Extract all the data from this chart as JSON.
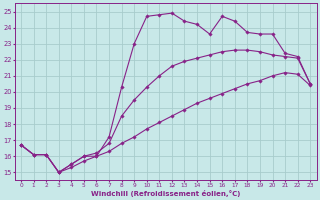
{
  "background_color": "#c8e8e8",
  "grid_color": "#a8cccc",
  "line_color": "#882288",
  "xlabel": "Windchill (Refroidissement éolien,°C)",
  "ylabel_ticks": [
    15,
    16,
    17,
    18,
    19,
    20,
    21,
    22,
    23,
    24,
    25
  ],
  "xlim": [
    -0.5,
    23.5
  ],
  "ylim": [
    14.5,
    25.5
  ],
  "line1_x": [
    0,
    1,
    2,
    3,
    4,
    5,
    6,
    7,
    8,
    9,
    10,
    11,
    12,
    13,
    14,
    15,
    16,
    17,
    18,
    19,
    20,
    21,
    22,
    23
  ],
  "line1_y": [
    16.7,
    16.1,
    16.1,
    15.0,
    15.5,
    16.0,
    16.0,
    17.2,
    20.3,
    23.0,
    24.7,
    24.8,
    24.9,
    24.4,
    24.2,
    23.6,
    24.7,
    24.4,
    23.7,
    23.6,
    23.6,
    22.4,
    22.2,
    20.5
  ],
  "line2_x": [
    0,
    1,
    2,
    3,
    4,
    5,
    6,
    7,
    8,
    9,
    10,
    11,
    12,
    13,
    14,
    15,
    16,
    17,
    18,
    19,
    20,
    21,
    22,
    23
  ],
  "line2_y": [
    16.7,
    16.1,
    16.1,
    15.0,
    15.5,
    16.0,
    16.2,
    16.8,
    18.5,
    19.5,
    20.3,
    21.0,
    21.6,
    21.9,
    22.1,
    22.3,
    22.5,
    22.6,
    22.6,
    22.5,
    22.3,
    22.2,
    22.1,
    20.5
  ],
  "line3_x": [
    0,
    1,
    2,
    3,
    4,
    5,
    6,
    7,
    8,
    9,
    10,
    11,
    12,
    13,
    14,
    15,
    16,
    17,
    18,
    19,
    20,
    21,
    22,
    23
  ],
  "line3_y": [
    16.7,
    16.1,
    16.1,
    15.0,
    15.3,
    15.7,
    16.0,
    16.3,
    16.8,
    17.2,
    17.7,
    18.1,
    18.5,
    18.9,
    19.3,
    19.6,
    19.9,
    20.2,
    20.5,
    20.7,
    21.0,
    21.2,
    21.1,
    20.4
  ]
}
